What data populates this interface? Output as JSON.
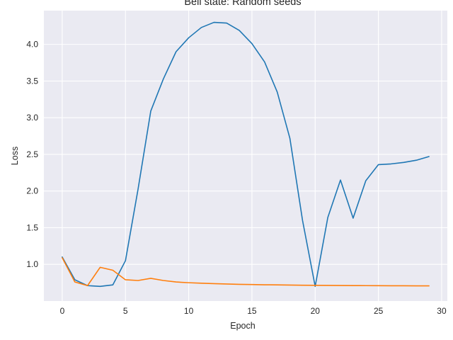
{
  "chart_data": {
    "type": "line",
    "title": "Bell state: Random seeds",
    "xlabel": "Epoch",
    "ylabel": "Loss",
    "xlim": [
      -1.45,
      30.45
    ],
    "ylim": [
      0.5,
      4.46
    ],
    "xticks": [
      0,
      5,
      10,
      15,
      20,
      25,
      30
    ],
    "yticks": [
      1.0,
      1.5,
      2.0,
      2.5,
      3.0,
      3.5,
      4.0
    ],
    "grid": true,
    "background": "#eaeaf2",
    "x": [
      0,
      1,
      2,
      3,
      4,
      5,
      6,
      7,
      8,
      9,
      10,
      11,
      12,
      13,
      14,
      15,
      16,
      17,
      18,
      19,
      20,
      21,
      22,
      23,
      24,
      25,
      26,
      27,
      28,
      29
    ],
    "series": [
      {
        "color": "#1f77b4",
        "values": [
          1.1,
          0.79,
          0.71,
          0.7,
          0.72,
          1.05,
          2.03,
          3.09,
          3.53,
          3.9,
          4.09,
          4.23,
          4.3,
          4.29,
          4.19,
          4.01,
          3.76,
          3.35,
          2.72,
          1.6,
          0.7,
          1.64,
          2.15,
          1.63,
          2.14,
          2.36,
          2.37,
          2.39,
          2.42,
          2.47
        ]
      },
      {
        "color": "#ff7f0e",
        "values": [
          1.09,
          0.76,
          0.71,
          0.96,
          0.92,
          0.79,
          0.78,
          0.81,
          0.78,
          0.76,
          0.75,
          0.743,
          0.737,
          0.732,
          0.728,
          0.725,
          0.722,
          0.72,
          0.718,
          0.716,
          0.714,
          0.713,
          0.712,
          0.711,
          0.71,
          0.709,
          0.708,
          0.708,
          0.707,
          0.707
        ]
      }
    ]
  }
}
